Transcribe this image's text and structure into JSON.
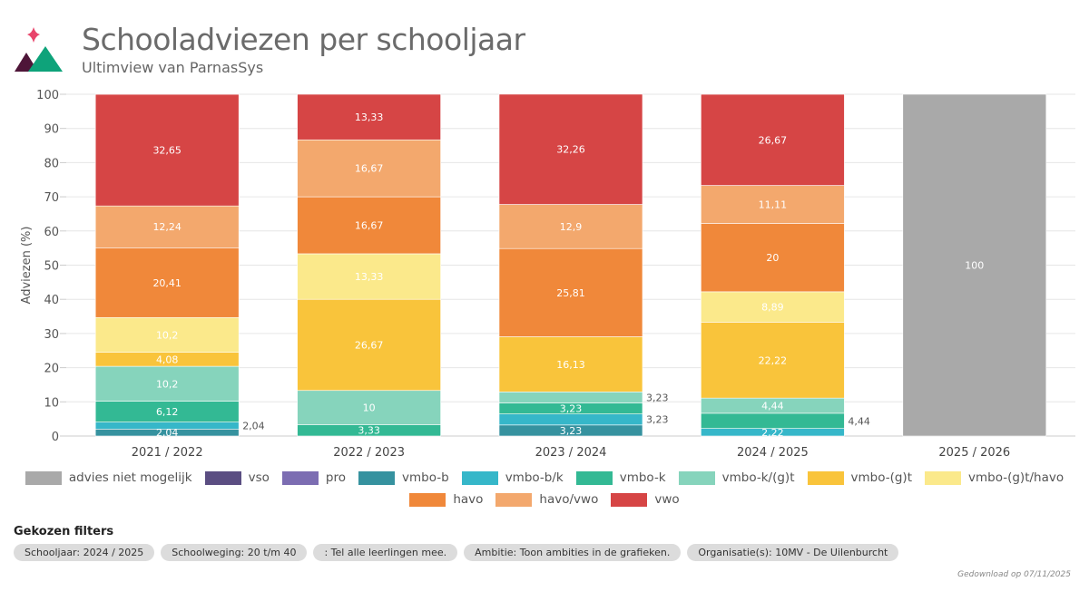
{
  "header": {
    "title": "Schooladviezen per schooljaar",
    "subtitle": "Ultimview van ParnasSys"
  },
  "chart_data": {
    "type": "bar",
    "stacked": true,
    "ylabel": "Adviezen (%)",
    "xlabel": "",
    "ylim": [
      0,
      100
    ],
    "yticks": [
      0,
      10,
      20,
      30,
      40,
      50,
      60,
      70,
      80,
      90,
      100
    ],
    "grid": true,
    "legend_position": "bottom",
    "categories": [
      "2021 / 2022",
      "2022 / 2023",
      "2023 / 2024",
      "2024 / 2025",
      "2025 / 2026"
    ],
    "series": [
      {
        "name": "advies niet mogelijk",
        "color": "#a9a9a9",
        "values": [
          0,
          0,
          0,
          0,
          100
        ]
      },
      {
        "name": "vso",
        "color": "#5b4e82",
        "values": [
          0,
          0,
          0,
          0,
          0
        ]
      },
      {
        "name": "pro",
        "color": "#7c6db2",
        "values": [
          0,
          0,
          0,
          0,
          0
        ]
      },
      {
        "name": "vmbo-b",
        "color": "#36929f",
        "values": [
          2.04,
          0,
          3.23,
          0,
          0
        ]
      },
      {
        "name": "vmbo-b/k",
        "color": "#36b7c9",
        "values": [
          2.04,
          0,
          3.23,
          2.22,
          0
        ]
      },
      {
        "name": "vmbo-k",
        "color": "#33b994",
        "values": [
          6.12,
          3.33,
          3.23,
          4.44,
          0
        ]
      },
      {
        "name": "vmbo-k/(g)t",
        "color": "#86d4bc",
        "values": [
          10.2,
          10,
          3.23,
          4.44,
          0
        ]
      },
      {
        "name": "vmbo-(g)t",
        "color": "#f9c43b",
        "values": [
          4.08,
          26.67,
          16.13,
          22.22,
          0
        ]
      },
      {
        "name": "vmbo-(g)t/havo",
        "color": "#fbe98b",
        "values": [
          10.2,
          13.33,
          0,
          8.89,
          0
        ]
      },
      {
        "name": "havo",
        "color": "#f0883a",
        "values": [
          20.41,
          16.67,
          25.81,
          20,
          0
        ]
      },
      {
        "name": "havo/vwo",
        "color": "#f3a86d",
        "values": [
          12.24,
          16.67,
          12.9,
          11.11,
          0
        ]
      },
      {
        "name": "vwo",
        "color": "#d64545",
        "values": [
          32.65,
          13.33,
          32.26,
          26.67,
          0
        ]
      }
    ]
  },
  "filters": {
    "title": "Gekozen filters",
    "chips": [
      "Schooljaar: 2024 / 2025",
      "Schoolweging: 20 t/m 40",
      ": Tel alle leerlingen mee.",
      "Ambitie: Toon ambities in de grafieken.",
      "Organisatie(s): 10MV - De Uilenburcht"
    ]
  },
  "footer": {
    "download": "Gedownload op 07/11/2025"
  }
}
